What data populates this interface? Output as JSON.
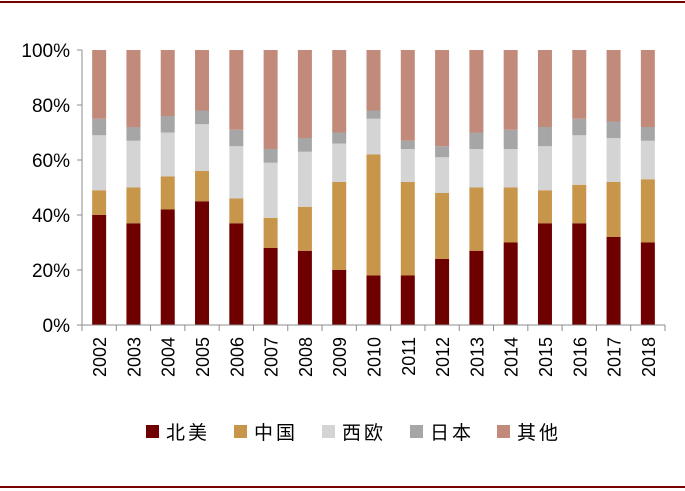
{
  "chart_data": {
    "type": "bar",
    "stacked": true,
    "title": "",
    "xlabel": "",
    "ylabel": "",
    "ylim": [
      0,
      100
    ],
    "y_ticks": [
      "0%",
      "20%",
      "40%",
      "60%",
      "80%",
      "100%"
    ],
    "categories": [
      "2002",
      "2003",
      "2004",
      "2005",
      "2006",
      "2007",
      "2008",
      "2009",
      "2010",
      "2011",
      "2012",
      "2013",
      "2014",
      "2015",
      "2016",
      "2017",
      "2018"
    ],
    "series": [
      {
        "name": "北美",
        "color": "#6e0000",
        "values": [
          40,
          37,
          42,
          45,
          37,
          28,
          27,
          20,
          18,
          18,
          24,
          27,
          30,
          37,
          37,
          32,
          30
        ]
      },
      {
        "name": "中国",
        "color": "#c8964b",
        "values": [
          9,
          13,
          12,
          11,
          9,
          11,
          16,
          32,
          44,
          34,
          24,
          23,
          20,
          12,
          14,
          20,
          23
        ]
      },
      {
        "name": "西欧",
        "color": "#d4d4d4",
        "values": [
          20,
          17,
          16,
          17,
          19,
          20,
          20,
          14,
          13,
          12,
          13,
          14,
          14,
          16,
          18,
          16,
          14
        ]
      },
      {
        "name": "日本",
        "color": "#a6a6a6",
        "values": [
          6,
          5,
          6,
          5,
          6,
          5,
          5,
          4,
          3,
          3,
          4,
          6,
          7,
          7,
          6,
          6,
          5
        ]
      },
      {
        "name": "其他",
        "color": "#c28a7b",
        "values": [
          25,
          28,
          24,
          22,
          29,
          36,
          32,
          30,
          22,
          33,
          35,
          30,
          29,
          28,
          25,
          26,
          28
        ]
      }
    ]
  }
}
